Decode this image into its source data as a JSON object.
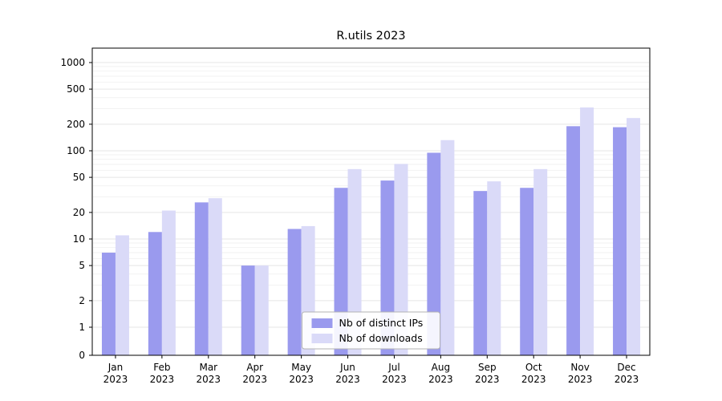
{
  "chart_data": {
    "type": "bar",
    "title": "R.utils 2023",
    "xlabel": "",
    "ylabel": "",
    "yscale": "log",
    "ylim": [
      0,
      1000
    ],
    "yticks": [
      0,
      1,
      2,
      5,
      10,
      20,
      50,
      100,
      200,
      500,
      1000
    ],
    "grid": true,
    "legend_position": "bottom-center",
    "categories": [
      "Jan 2023",
      "Feb 2023",
      "Mar 2023",
      "Apr 2023",
      "May 2023",
      "Jun 2023",
      "Jul 2023",
      "Aug 2023",
      "Sep 2023",
      "Oct 2023",
      "Nov 2023",
      "Dec 2023"
    ],
    "series": [
      {
        "name": "Nb of distinct IPs",
        "color": "#9a9aee",
        "values": [
          7,
          12,
          26,
          5,
          13,
          38,
          46,
          95,
          35,
          38,
          190,
          185
        ]
      },
      {
        "name": "Nb of downloads",
        "color": "#dadaf8",
        "values": [
          11,
          21,
          29,
          5,
          14,
          62,
          71,
          132,
          45,
          62,
          310,
          235
        ]
      }
    ]
  },
  "colors": {
    "grid_major": "#e5e5e5",
    "grid_minor": "#f2f2f2",
    "axis": "#000000",
    "legend_border": "#b3b3b3",
    "legend_bg": "#ffffff"
  }
}
